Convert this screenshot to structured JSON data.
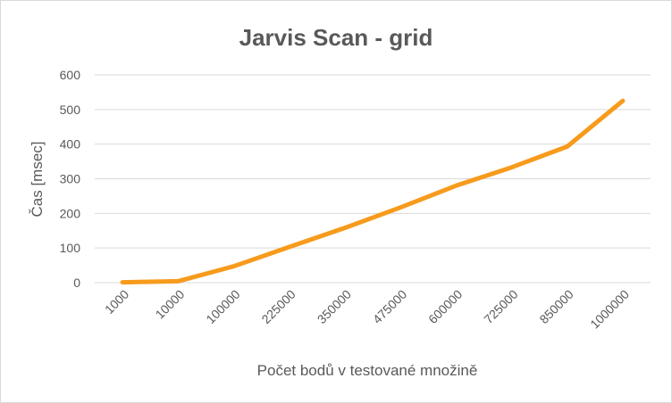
{
  "chart_data": {
    "type": "line",
    "title": "Jarvis Scan - grid",
    "xlabel": "Počet bodů v testované množině",
    "ylabel": "Čas [msec]",
    "categories": [
      "1000",
      "10000",
      "100000",
      "225000",
      "350000",
      "475000",
      "600000",
      "725000",
      "850000",
      "1000000"
    ],
    "series": [
      {
        "values": [
          1,
          4,
          47,
          103,
          158,
          217,
          280,
          333,
          393,
          525
        ],
        "color": "#f79b1d"
      }
    ],
    "ylim": [
      0,
      600
    ],
    "yticks": [
      0,
      100,
      200,
      300,
      400,
      500,
      600
    ],
    "grid": true,
    "legend": "none"
  }
}
